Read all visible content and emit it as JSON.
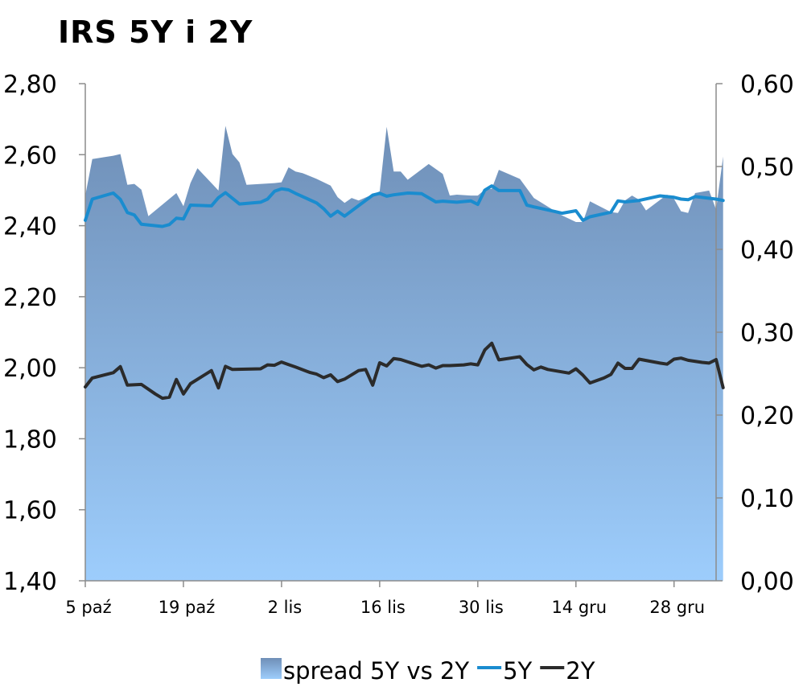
{
  "chart_data": {
    "type": "line",
    "title": "IRS 5Y i 2Y",
    "x_ticks": [
      "5 paź",
      "19 paź",
      "2 lis",
      "16 lis",
      "30 lis",
      "14 gru",
      "28 gru"
    ],
    "x_tick_index": [
      0,
      14,
      28,
      42,
      56,
      70,
      84
    ],
    "x_last_index": 90,
    "y_left": {
      "ticks": [
        "2,80",
        "2,60",
        "2,40",
        "2,20",
        "2,00",
        "1,80",
        "1,60",
        "1,40"
      ],
      "lim": [
        1.4,
        2.8
      ]
    },
    "y_right": {
      "ticks": [
        "0,60",
        "0,50",
        "0,40",
        "0,30",
        "0,20",
        "0,10",
        "0,00"
      ],
      "lim": [
        0,
        0.6
      ]
    },
    "legend_position": "bottom",
    "series": [
      {
        "name": "spread 5Y vs 2Y",
        "kind": "area",
        "axis": "right",
        "color_top": "#6f8fb7",
        "color_bottom": "#9dcdfc",
        "points": [
          [
            0,
            0.465
          ],
          [
            1,
            0.509
          ],
          [
            4,
            0.513
          ],
          [
            5,
            0.515
          ],
          [
            6,
            0.478
          ],
          [
            7,
            0.479
          ],
          [
            8,
            0.472
          ],
          [
            9,
            0.44
          ],
          [
            13,
            0.468
          ],
          [
            14,
            0.452
          ],
          [
            15,
            0.48
          ],
          [
            16,
            0.498
          ],
          [
            19,
            0.471
          ],
          [
            20,
            0.549
          ],
          [
            21,
            0.515
          ],
          [
            22,
            0.505
          ],
          [
            23,
            0.478
          ],
          [
            27,
            0.48
          ],
          [
            28,
            0.481
          ],
          [
            29,
            0.499
          ],
          [
            30,
            0.494
          ],
          [
            31,
            0.492
          ],
          [
            33,
            0.485
          ],
          [
            35,
            0.477
          ],
          [
            36,
            0.463
          ],
          [
            37,
            0.456
          ],
          [
            38,
            0.462
          ],
          [
            39,
            0.459
          ],
          [
            42,
            0.47
          ],
          [
            43,
            0.548
          ],
          [
            44,
            0.494
          ],
          [
            45,
            0.494
          ],
          [
            46,
            0.484
          ],
          [
            49,
            0.503
          ],
          [
            51,
            0.491
          ],
          [
            52,
            0.465
          ],
          [
            53,
            0.466
          ],
          [
            55,
            0.465
          ],
          [
            56,
            0.465
          ],
          [
            57,
            0.472
          ],
          [
            58,
            0.473
          ],
          [
            59,
            0.496
          ],
          [
            62,
            0.485
          ],
          [
            64,
            0.462
          ],
          [
            68,
            0.441
          ],
          [
            70,
            0.433
          ],
          [
            71,
            0.433
          ],
          [
            72,
            0.458
          ],
          [
            75,
            0.445
          ],
          [
            76,
            0.444
          ],
          [
            77,
            0.459
          ],
          [
            78,
            0.465
          ],
          [
            79,
            0.46
          ],
          [
            80,
            0.447
          ],
          [
            83,
            0.466
          ],
          [
            84,
            0.461
          ],
          [
            85,
            0.446
          ],
          [
            86,
            0.444
          ],
          [
            87,
            0.468
          ],
          [
            89,
            0.471
          ],
          [
            90,
            0.448
          ],
          [
            91,
            0.512
          ]
        ]
      },
      {
        "name": "5Y",
        "kind": "line",
        "axis": "left",
        "color": "#1a8ccf",
        "points": [
          [
            0,
            2.415
          ],
          [
            1,
            2.475
          ],
          [
            4,
            2.492
          ],
          [
            5,
            2.474
          ],
          [
            6,
            2.437
          ],
          [
            7,
            2.43
          ],
          [
            8,
            2.404
          ],
          [
            11,
            2.398
          ],
          [
            12,
            2.403
          ],
          [
            13,
            2.421
          ],
          [
            14,
            2.419
          ],
          [
            15,
            2.458
          ],
          [
            18,
            2.456
          ],
          [
            19,
            2.479
          ],
          [
            20,
            2.493
          ],
          [
            22,
            2.461
          ],
          [
            25,
            2.466
          ],
          [
            26,
            2.475
          ],
          [
            27,
            2.497
          ],
          [
            28,
            2.504
          ],
          [
            29,
            2.501
          ],
          [
            30,
            2.491
          ],
          [
            33,
            2.464
          ],
          [
            34,
            2.448
          ],
          [
            35,
            2.427
          ],
          [
            36,
            2.441
          ],
          [
            37,
            2.427
          ],
          [
            41,
            2.486
          ],
          [
            42,
            2.491
          ],
          [
            43,
            2.483
          ],
          [
            44,
            2.487
          ],
          [
            46,
            2.492
          ],
          [
            48,
            2.49
          ],
          [
            50,
            2.467
          ],
          [
            51,
            2.469
          ],
          [
            53,
            2.466
          ],
          [
            55,
            2.47
          ],
          [
            56,
            2.46
          ],
          [
            57,
            2.5
          ],
          [
            58,
            2.512
          ],
          [
            59,
            2.499
          ],
          [
            62,
            2.499
          ],
          [
            63,
            2.458
          ],
          [
            64,
            2.453
          ],
          [
            67,
            2.44
          ],
          [
            68,
            2.435
          ],
          [
            70,
            2.442
          ],
          [
            71,
            2.415
          ],
          [
            72,
            2.425
          ],
          [
            75,
            2.438
          ],
          [
            76,
            2.47
          ],
          [
            77,
            2.467
          ],
          [
            79,
            2.471
          ],
          [
            82,
            2.484
          ],
          [
            83,
            2.482
          ],
          [
            84,
            2.48
          ],
          [
            85,
            2.475
          ],
          [
            86,
            2.473
          ],
          [
            87,
            2.482
          ],
          [
            90,
            2.475
          ],
          [
            91,
            2.471
          ]
        ]
      },
      {
        "name": "2Y",
        "kind": "line",
        "axis": "left",
        "color": "#2b2b2b",
        "points": [
          [
            0,
            1.946
          ],
          [
            1,
            1.971
          ],
          [
            4,
            1.986
          ],
          [
            5,
            2.003
          ],
          [
            6,
            1.951
          ],
          [
            8,
            1.953
          ],
          [
            10,
            1.926
          ],
          [
            11,
            1.914
          ],
          [
            12,
            1.917
          ],
          [
            13,
            1.967
          ],
          [
            14,
            1.926
          ],
          [
            15,
            1.955
          ],
          [
            18,
            1.992
          ],
          [
            19,
            1.943
          ],
          [
            20,
            2.004
          ],
          [
            21,
            1.995
          ],
          [
            25,
            1.997
          ],
          [
            26,
            2.008
          ],
          [
            27,
            2.007
          ],
          [
            28,
            2.016
          ],
          [
            29,
            2.009
          ],
          [
            30,
            2.002
          ],
          [
            32,
            1.987
          ],
          [
            33,
            1.982
          ],
          [
            34,
            1.972
          ],
          [
            35,
            1.98
          ],
          [
            36,
            1.961
          ],
          [
            37,
            1.968
          ],
          [
            39,
            1.992
          ],
          [
            40,
            1.995
          ],
          [
            41,
            1.951
          ],
          [
            42,
            2.014
          ],
          [
            43,
            2.005
          ],
          [
            44,
            2.026
          ],
          [
            45,
            2.023
          ],
          [
            48,
            2.004
          ],
          [
            49,
            2.008
          ],
          [
            50,
            1.999
          ],
          [
            51,
            2.006
          ],
          [
            52,
            2.006
          ],
          [
            54,
            2.008
          ],
          [
            55,
            2.011
          ],
          [
            56,
            2.008
          ],
          [
            57,
            2.05
          ],
          [
            58,
            2.069
          ],
          [
            59,
            2.022
          ],
          [
            62,
            2.031
          ],
          [
            63,
            2.009
          ],
          [
            64,
            1.994
          ],
          [
            65,
            2.002
          ],
          [
            66,
            1.995
          ],
          [
            69,
            1.985
          ],
          [
            70,
            1.997
          ],
          [
            71,
            1.979
          ],
          [
            72,
            1.957
          ],
          [
            74,
            1.971
          ],
          [
            75,
            1.981
          ],
          [
            76,
            2.013
          ],
          [
            77,
            1.998
          ],
          [
            78,
            1.998
          ],
          [
            79,
            2.024
          ],
          [
            82,
            2.013
          ],
          [
            83,
            2.01
          ],
          [
            84,
            2.024
          ],
          [
            85,
            2.027
          ],
          [
            86,
            2.021
          ],
          [
            88,
            2.015
          ],
          [
            89,
            2.013
          ],
          [
            90,
            2.023
          ],
          [
            91,
            1.944
          ]
        ]
      }
    ]
  }
}
